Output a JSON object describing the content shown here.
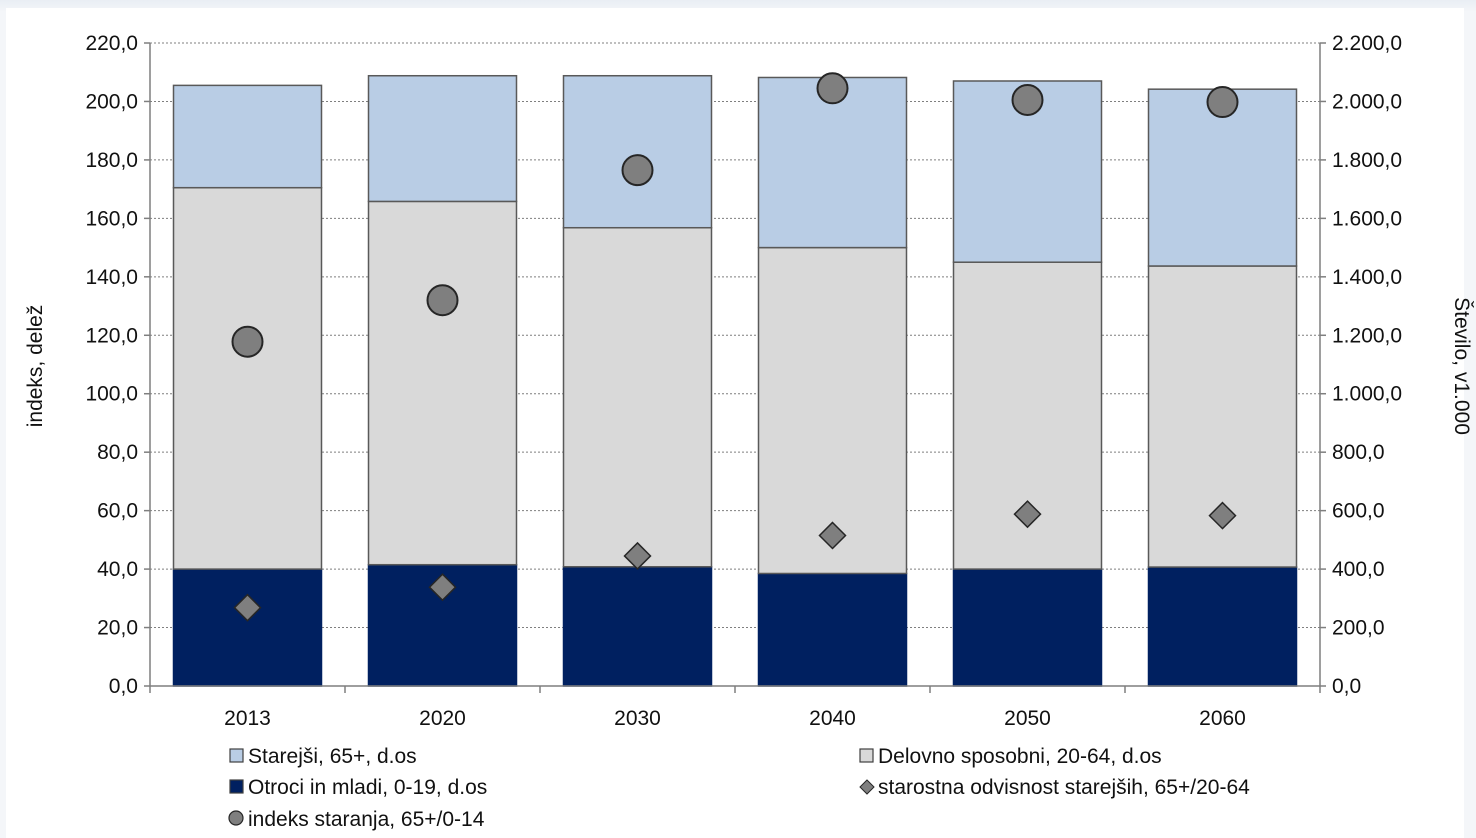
{
  "chart_data": {
    "type": "bar",
    "categories": [
      "2013",
      "2020",
      "2030",
      "2040",
      "2050",
      "2060"
    ],
    "y_left": {
      "label": "indeks, delež",
      "range": [
        0,
        220
      ],
      "ticks": [
        "0,0",
        "20,0",
        "40,0",
        "60,0",
        "80,0",
        "100,0",
        "120,0",
        "140,0",
        "160,0",
        "180,0",
        "200,0",
        "220,0"
      ]
    },
    "y_right": {
      "label": "Število, v1.000",
      "range": [
        0,
        2200
      ],
      "ticks": [
        "0,0",
        "200,0",
        "400,0",
        "600,0",
        "800,0",
        "1.000,0",
        "1.200,0",
        "1.400,0",
        "1.600,0",
        "1.800,0",
        "2.000,0",
        "2.200,0"
      ]
    },
    "stacked_series": [
      {
        "name": "Otroci in mladi, 0-19, d.os",
        "axis": "right",
        "color": "#002060",
        "values": [
          400,
          415,
          408,
          385,
          400,
          407
        ]
      },
      {
        "name": "Delovno sposobni, 20-64, d.os",
        "axis": "right",
        "color": "#d9d9d9",
        "values": [
          1305,
          1243,
          1160,
          1115,
          1050,
          1030
        ]
      },
      {
        "name": "Starejši, 65+, d.os",
        "axis": "right",
        "color": "#b9cde5",
        "values": [
          350,
          430,
          520,
          582,
          620,
          605
        ]
      }
    ],
    "line_series": [
      {
        "name": "starostna odvisnost starejših, 65+/20-64",
        "axis": "left",
        "marker": "diamond",
        "color": "#7f7f7f",
        "values": [
          26.8,
          33.8,
          44.5,
          51.5,
          58.8,
          58.3
        ]
      },
      {
        "name": "indeks staranja, 65+/0-14",
        "axis": "left",
        "marker": "circle",
        "color": "#7f7f7f",
        "values": [
          117.8,
          132.0,
          176.5,
          204.5,
          200.5,
          199.8
        ]
      }
    ],
    "legend": [
      {
        "label": "Starejši, 65+, d.os",
        "symbol": "square",
        "color": "#b9cde5"
      },
      {
        "label": "Delovno sposobni, 20-64, d.os",
        "symbol": "square",
        "color": "#d9d9d9"
      },
      {
        "label": "Otroci in mladi, 0-19, d.os",
        "symbol": "square",
        "color": "#002060"
      },
      {
        "label": "starostna odvisnost starejših, 65+/20-64",
        "symbol": "diamond",
        "color": "#7f7f7f"
      },
      {
        "label": "indeks staranja, 65+/0-14",
        "symbol": "circle",
        "color": "#7f7f7f"
      }
    ],
    "legend_position": "bottom",
    "grid": true
  }
}
